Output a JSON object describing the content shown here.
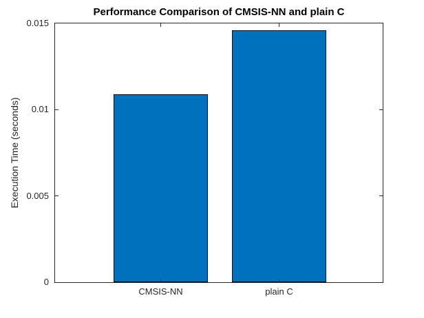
{
  "figure": {
    "background": "#ffffff"
  },
  "chart_data": {
    "type": "bar",
    "title": "Performance Comparison of CMSIS-NN and plain C",
    "xlabel": "",
    "ylabel": "Execution Time (seconds)",
    "categories": [
      "CMSIS-NN",
      "plain C"
    ],
    "values": [
      0.0109,
      0.0146
    ],
    "ylim": [
      0,
      0.015
    ],
    "yticks": [
      0,
      0.005,
      0.01,
      0.015
    ],
    "ytick_labels": [
      "0",
      "0.005",
      "0.01",
      "0.015"
    ],
    "bar_color": "#0072BD",
    "bar_edge_color": "#000000",
    "axis_color": "#262626",
    "tick_direction": "in",
    "grid": false,
    "legend_position": "none"
  }
}
